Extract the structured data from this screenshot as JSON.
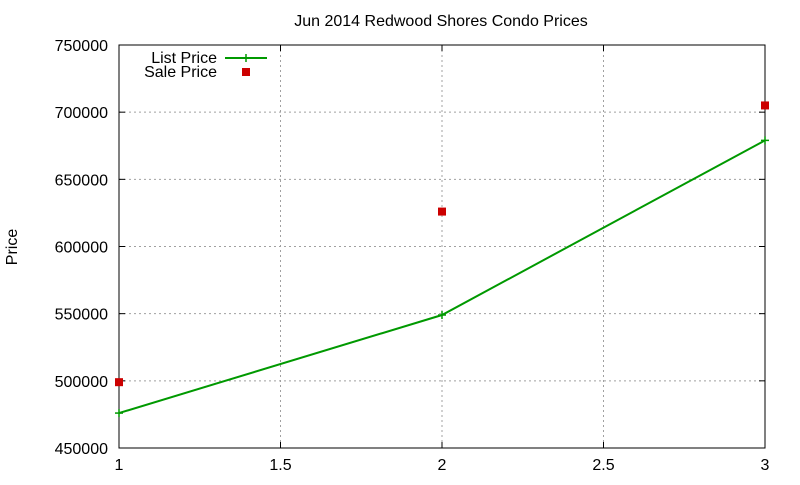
{
  "chart_data": {
    "type": "line",
    "title": "Jun 2014 Redwood Shores Condo Prices",
    "xlabel": "",
    "ylabel": "Price",
    "xlim": [
      1,
      3
    ],
    "ylim": [
      450000,
      750000
    ],
    "x_ticks": [
      1,
      1.5,
      2,
      2.5,
      3
    ],
    "x_tick_labels": [
      "1",
      "1.5",
      "2",
      "2.5",
      "3"
    ],
    "y_ticks": [
      450000,
      500000,
      550000,
      600000,
      650000,
      700000,
      750000
    ],
    "y_tick_labels": [
      "450000",
      "500000",
      "550000",
      "600000",
      "650000",
      "700000",
      "750000"
    ],
    "grid": true,
    "legend_position": "top-left",
    "series": [
      {
        "name": "List Price",
        "style": "line-with-plus-markers",
        "color": "#009900",
        "x": [
          1,
          2,
          3
        ],
        "values": [
          476000,
          549000,
          679000
        ]
      },
      {
        "name": "Sale Price",
        "style": "square-markers",
        "color": "#cc0000",
        "x": [
          1,
          2,
          3
        ],
        "values": [
          499000,
          626000,
          705000
        ]
      }
    ]
  }
}
